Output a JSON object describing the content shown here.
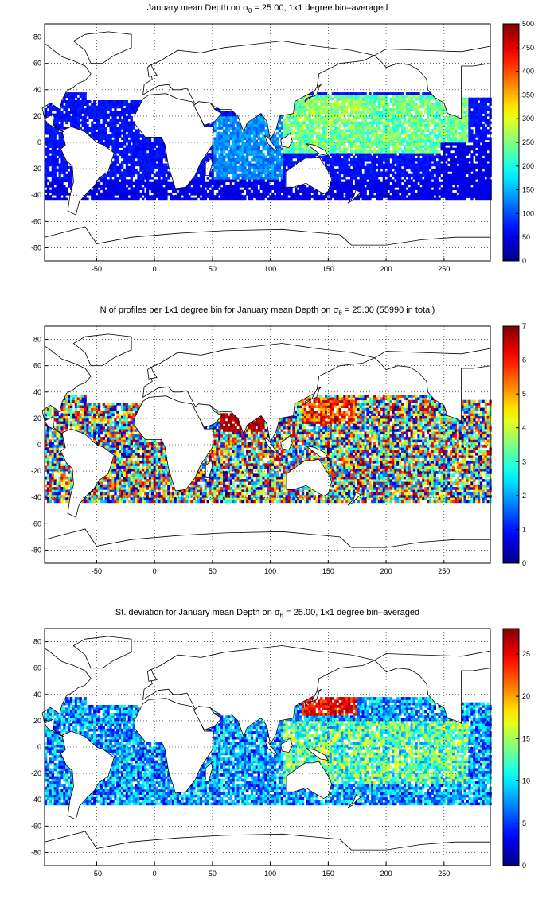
{
  "panels": [
    {
      "title_pre": "January mean Depth on σ",
      "title_sub": "θ",
      "title_post": " = 25.00, 1x1 degree bin–averaged",
      "colorbar": {
        "min": 0,
        "max": 500,
        "ticks": [
          "0",
          "50",
          "100",
          "150",
          "200",
          "250",
          "300",
          "350",
          "400",
          "450",
          "500"
        ]
      },
      "field": "depth"
    },
    {
      "title_pre": "N of profiles per 1x1 degree bin for January mean Depth on σ",
      "title_sub": "θ",
      "title_post": " = 25.00 (55990 in total)",
      "colorbar": {
        "min": 0,
        "max": 7,
        "ticks": [
          "0",
          "1",
          "2",
          "3",
          "4",
          "5",
          "6",
          "7"
        ]
      },
      "field": "count"
    },
    {
      "title_pre": "St. deviation for January mean Depth on σ",
      "title_sub": "θ",
      "title_post": " = 25.00, 1x1 degree bin–averaged",
      "colorbar": {
        "min": 0,
        "max": 28,
        "ticks": [
          "0",
          "5",
          "10",
          "15",
          "20",
          "25"
        ]
      },
      "field": "std"
    }
  ],
  "map_axes": {
    "x_ticks": [
      "-50",
      "0",
      "50",
      "100",
      "150",
      "200",
      "250"
    ],
    "y_ticks": [
      "80",
      "60",
      "40",
      "20",
      "0",
      "-20",
      "-40",
      "-60",
      "-80"
    ],
    "xlim": [
      -95,
      290
    ],
    "ylim": [
      -90,
      90
    ]
  },
  "colors": {
    "colormap": "jet",
    "land": "#ffffff",
    "coast": "#000000"
  }
}
